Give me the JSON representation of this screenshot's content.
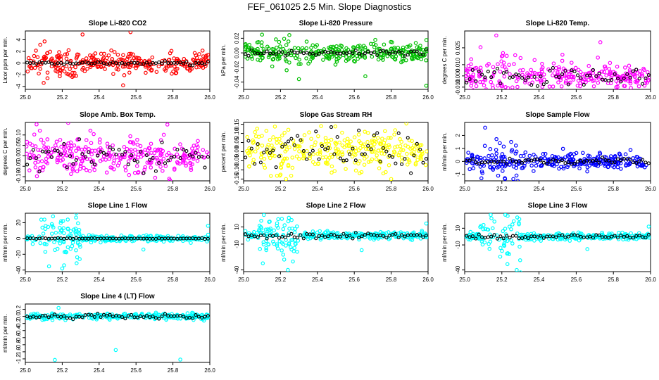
{
  "page": {
    "title": "FEF_061025  2.5 Min. Slope Diagnostics"
  },
  "chart_data": [
    {
      "type": "scatter",
      "title": "Slope Li-820 CO2",
      "ylabel": "Licor ppm per min.",
      "color": "#ff0000",
      "xlim": [
        25.0,
        26.0
      ],
      "ylim": [
        -4.5,
        5.5
      ],
      "xticks": [
        25.0,
        25.2,
        25.4,
        25.6,
        25.8,
        26.0
      ],
      "xtick_labels": [
        "25.0",
        "25.2",
        "25.4",
        "25.6",
        "25.8",
        "26.0"
      ],
      "yticks": [
        -4,
        -2,
        0,
        2,
        4
      ],
      "ytick_labels": [
        "-4",
        "-2",
        "0",
        "2",
        "4"
      ],
      "spread": 0.8,
      "black_spread": 0.15,
      "bulge": 0.7,
      "outliers": [
        [
          25.31,
          4.9
        ],
        [
          25.57,
          5.3
        ],
        [
          25.53,
          -3.8
        ],
        [
          25.12,
          -2.6
        ]
      ]
    },
    {
      "type": "scatter",
      "title": "Slope Li-820 Pressure",
      "ylabel": "kPa per min.",
      "color": "#00c000",
      "xlim": [
        25.0,
        26.0
      ],
      "ylim": [
        -0.05,
        0.03
      ],
      "xticks": [
        25.0,
        25.2,
        25.4,
        25.6,
        25.8,
        26.0
      ],
      "xtick_labels": [
        "25.0",
        "25.2",
        "25.4",
        "25.6",
        "25.8",
        "26.0"
      ],
      "yticks": [
        -0.04,
        -0.02,
        0.0,
        0.02
      ],
      "ytick_labels": [
        "-0.04",
        "-0.02",
        "0.00",
        "0.02"
      ],
      "spread": 0.006,
      "black_spread": 0.002,
      "bulge": 0.5,
      "outliers": [
        [
          25.1,
          0.025
        ],
        [
          25.99,
          -0.045
        ],
        [
          25.3,
          -0.036
        ],
        [
          25.66,
          -0.032
        ]
      ]
    },
    {
      "type": "scatter",
      "title": "Slope Li-820 Temp.",
      "ylabel": "degrees C per min.",
      "color": "#ff00ff",
      "xlim": [
        25.0,
        26.0
      ],
      "ylim": [
        -0.012,
        0.04
      ],
      "xticks": [
        25.0,
        25.2,
        25.4,
        25.6,
        25.8,
        26.0
      ],
      "xtick_labels": [
        "25.0",
        "25.2",
        "25.4",
        "25.6",
        "25.8",
        "26.0"
      ],
      "yticks": [
        -0.01,
        0.0,
        0.01,
        0.025
      ],
      "ytick_labels": [
        "-0.010",
        "0.000",
        "0.010",
        "0.025"
      ],
      "spread": 0.006,
      "black_spread": 0.004,
      "bulge": 0.6,
      "outliers": [
        [
          25.17,
          0.036
        ],
        [
          25.22,
          -0.01
        ],
        [
          25.73,
          0.03
        ]
      ]
    },
    {
      "type": "scatter",
      "title": "Slope Amb. Box Temp.",
      "ylabel": "degrees C per min.",
      "color": "#ff00ff",
      "xlim": [
        25.0,
        26.0
      ],
      "ylim": [
        -0.12,
        0.16
      ],
      "xticks": [
        25.0,
        25.2,
        25.4,
        25.6,
        25.8,
        26.0
      ],
      "xtick_labels": [
        "25.0",
        "25.2",
        "25.4",
        "25.6",
        "25.8",
        "26.0"
      ],
      "yticks": [
        -0.1,
        -0.05,
        0.0,
        0.05,
        0.1
      ],
      "ytick_labels": [
        "-0.10",
        "-0.05",
        "0.00",
        "0.05",
        "0.10"
      ],
      "spread": 0.045,
      "black_spread": 0.03,
      "bulge": 0.2,
      "outliers": [
        [
          25.77,
          0.15
        ],
        [
          25.78,
          -0.11
        ]
      ]
    },
    {
      "type": "scatter",
      "title": "Slope Gas Stream RH",
      "ylabel": "percent per min.",
      "color": "#ffff00",
      "xlim": [
        25.0,
        26.0
      ],
      "ylim": [
        -0.16,
        0.16
      ],
      "xticks": [
        25.0,
        25.2,
        25.4,
        25.6,
        25.8,
        26.0
      ],
      "xtick_labels": [
        "25.0",
        "25.2",
        "25.4",
        "25.6",
        "25.8",
        "26.0"
      ],
      "yticks": [
        -0.15,
        -0.1,
        -0.05,
        0.0,
        0.05,
        0.1,
        0.15
      ],
      "ytick_labels": [
        "-0.15",
        "-0.10",
        "-0.05",
        "0.00",
        "0.05",
        "0.10",
        "0.15"
      ],
      "spread": 0.05,
      "black_spread": 0.05,
      "bulge": 0.2,
      "outliers": [
        [
          25.42,
          0.14
        ],
        [
          25.23,
          -0.15
        ],
        [
          25.8,
          -0.15
        ]
      ]
    },
    {
      "type": "scatter",
      "title": "Slope Sample Flow",
      "ylabel": "ml/min per min.",
      "color": "#0000ff",
      "xlim": [
        25.0,
        26.0
      ],
      "ylim": [
        -1.5,
        3.0
      ],
      "xticks": [
        25.0,
        25.2,
        25.4,
        25.6,
        25.8,
        26.0
      ],
      "xtick_labels": [
        "25.0",
        "25.2",
        "25.4",
        "25.6",
        "25.8",
        "26.0"
      ],
      "yticks": [
        -1,
        0,
        1,
        2
      ],
      "ytick_labels": [
        "-1",
        "0",
        "1",
        "2"
      ],
      "spread": 0.3,
      "black_spread": 0.12,
      "bulge": 1.2,
      "outliers": [
        [
          25.11,
          2.6
        ],
        [
          25.25,
          1.5
        ],
        [
          25.09,
          -1.3
        ],
        [
          25.18,
          -1.1
        ]
      ]
    },
    {
      "type": "scatter",
      "title": "Slope Line 1 Flow",
      "ylabel": "ml/min per min.",
      "color": "#00ffff",
      "xlim": [
        25.0,
        26.0
      ],
      "ylim": [
        -42,
        32
      ],
      "xticks": [
        25.0,
        25.2,
        25.4,
        25.6,
        25.8,
        26.0
      ],
      "xtick_labels": [
        "25.0",
        "25.2",
        "25.4",
        "25.6",
        "25.8",
        "26.0"
      ],
      "yticks": [
        -40,
        -20,
        0,
        20
      ],
      "ytick_labels": [
        "-40",
        "-20",
        "0",
        "20"
      ],
      "spread": 2,
      "black_spread": 0.3,
      "bulge": 6,
      "outliers": [
        [
          25.2,
          -38
        ],
        [
          25.21,
          -34
        ],
        [
          25.15,
          28
        ],
        [
          25.23,
          24
        ],
        [
          25.99,
          16
        ],
        [
          25.64,
          -14
        ]
      ]
    },
    {
      "type": "scatter",
      "title": "Slope Line 2 Flow",
      "ylabel": "ml/min per min.",
      "color": "#00ffff",
      "xlim": [
        25.0,
        26.0
      ],
      "ylim": [
        -42,
        26
      ],
      "xticks": [
        25.0,
        25.2,
        25.4,
        25.6,
        25.8,
        26.0
      ],
      "xtick_labels": [
        "25.0",
        "25.2",
        "25.4",
        "25.6",
        "25.8",
        "26.0"
      ],
      "yticks": [
        -40,
        -10,
        10
      ],
      "ytick_labels": [
        "-40",
        "-10",
        "10"
      ],
      "spread": 2,
      "black_spread": 1.5,
      "bulge": 5,
      "outliers": [
        [
          25.11,
          24
        ],
        [
          25.24,
          -40
        ],
        [
          25.22,
          -28
        ],
        [
          25.99,
          14
        ],
        [
          25.64,
          -17
        ]
      ]
    },
    {
      "type": "scatter",
      "title": "Slope Line 3 Flow",
      "ylabel": "ml/min per min.",
      "color": "#00ffff",
      "xlim": [
        25.0,
        26.0
      ],
      "ylim": [
        -42,
        28
      ],
      "xticks": [
        25.0,
        25.2,
        25.4,
        25.6,
        25.8,
        26.0
      ],
      "xtick_labels": [
        "25.0",
        "25.2",
        "25.4",
        "25.6",
        "25.8",
        "26.0"
      ],
      "yticks": [
        -40,
        -10,
        10
      ],
      "ytick_labels": [
        "-40",
        "-10",
        "10"
      ],
      "spread": 2,
      "black_spread": 1.5,
      "bulge": 6,
      "outliers": [
        [
          25.28,
          -40
        ],
        [
          25.23,
          -33
        ],
        [
          25.14,
          26
        ],
        [
          25.16,
          18
        ],
        [
          25.99,
          12
        ],
        [
          25.66,
          -15
        ]
      ]
    },
    {
      "type": "scatter",
      "title": "Slope Line 4 (LT) Flow",
      "ylabel": "ml/min per min.",
      "color": "#00ffff",
      "xlim": [
        25.0,
        26.0
      ],
      "ylim": [
        -1.3,
        0.35
      ],
      "xticks": [
        25.0,
        25.2,
        25.4,
        25.6,
        25.8,
        26.0
      ],
      "xtick_labels": [
        "25.0",
        "25.2",
        "25.4",
        "25.6",
        "25.8",
        "26.0"
      ],
      "yticks": [
        -1.2,
        -1.0,
        -0.8,
        -0.6,
        -0.4,
        -0.2,
        0.0,
        0.2
      ],
      "ytick_labels": [
        "-1.2",
        "-1.0",
        "-0.8",
        "-0.6",
        "-0.4",
        "-0.2",
        "0.0",
        "0.2"
      ],
      "spread": 0.04,
      "black_spread": 0.04,
      "bulge": 0.15,
      "outliers": [
        [
          25.49,
          -0.95
        ],
        [
          25.16,
          -1.23
        ],
        [
          25.84,
          -1.22
        ],
        [
          25.18,
          0.24
        ]
      ]
    }
  ]
}
